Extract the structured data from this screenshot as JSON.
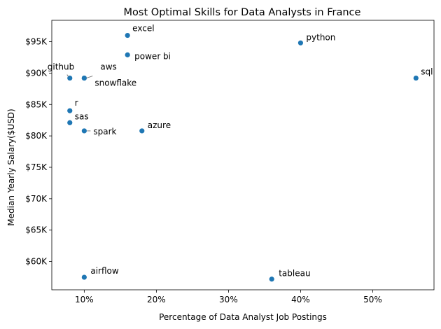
{
  "chart_data": {
    "type": "scatter",
    "title": "Most Optimal Skills for Data Analysts in France",
    "xlabel": "Percentage of Data Analyst Job Postings",
    "ylabel": "Median Yearly Salary($USD)",
    "xlim": [
      5.5,
      58.5
    ],
    "ylim": [
      55500,
      98400
    ],
    "x_ticks": [
      10,
      20,
      30,
      40,
      50
    ],
    "x_tick_labels": [
      "10%",
      "20%",
      "30%",
      "40%",
      "50%"
    ],
    "y_ticks": [
      60000,
      65000,
      70000,
      75000,
      80000,
      85000,
      90000,
      95000
    ],
    "y_tick_labels": [
      "$60K",
      "$65K",
      "$70K",
      "$75K",
      "$80K",
      "$85K",
      "$90K",
      "$95K"
    ],
    "grid": false,
    "color": "#1f77b4",
    "points": [
      {
        "label": "excel",
        "x": 16,
        "y": 96000
      },
      {
        "label": "python",
        "x": 40,
        "y": 94800
      },
      {
        "label": "power bi",
        "x": 16,
        "y": 92900
      },
      {
        "label": "github",
        "x": 8,
        "y": 89200
      },
      {
        "label": "aws",
        "x": 10,
        "y": 89200
      },
      {
        "label": "snowflake",
        "x": 10,
        "y": 89200
      },
      {
        "label": "sql",
        "x": 56,
        "y": 89200
      },
      {
        "label": "r",
        "x": 8,
        "y": 84000
      },
      {
        "label": "sas",
        "x": 8,
        "y": 82100
      },
      {
        "label": "spark",
        "x": 10,
        "y": 80800
      },
      {
        "label": "azure",
        "x": 18,
        "y": 80800
      },
      {
        "label": "airflow",
        "x": 10,
        "y": 57500
      },
      {
        "label": "tableau",
        "x": 36,
        "y": 57200
      }
    ]
  }
}
